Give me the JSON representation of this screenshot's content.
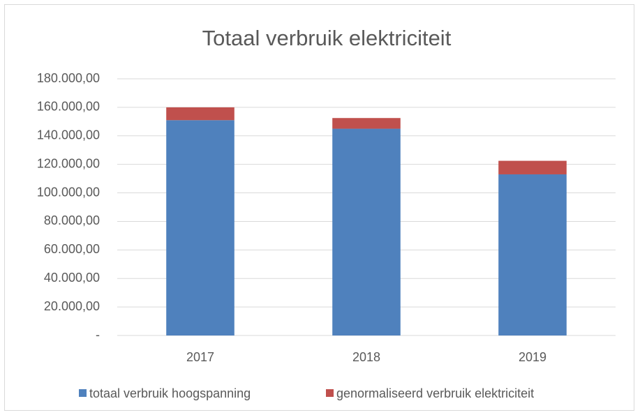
{
  "chart_data": {
    "type": "stacked_bar",
    "title": "Totaal verbruik elektriciteit",
    "categories": [
      "2017",
      "2018",
      "2019"
    ],
    "series": [
      {
        "name": "totaal verbruik hoogspanning",
        "color": "#4f81bd",
        "values": [
          151000,
          145000,
          113000
        ]
      },
      {
        "name": "genormaliseerd verbruik elektriciteit",
        "color": "#c0504d",
        "values": [
          9000,
          7500,
          9500
        ]
      }
    ],
    "ylim": [
      0,
      180000
    ],
    "yticks": [
      {
        "value": 0,
        "label": "-"
      },
      {
        "value": 20000,
        "label": "20.000,00"
      },
      {
        "value": 40000,
        "label": "40.000,00"
      },
      {
        "value": 60000,
        "label": "60.000,00"
      },
      {
        "value": 80000,
        "label": "80.000,00"
      },
      {
        "value": 100000,
        "label": "100.000,00"
      },
      {
        "value": 120000,
        "label": "120.000,00"
      },
      {
        "value": 140000,
        "label": "140.000,00"
      },
      {
        "value": 160000,
        "label": "160.000,00"
      },
      {
        "value": 180000,
        "label": "180.000,00"
      }
    ],
    "grid": true,
    "legend": "bottom"
  }
}
